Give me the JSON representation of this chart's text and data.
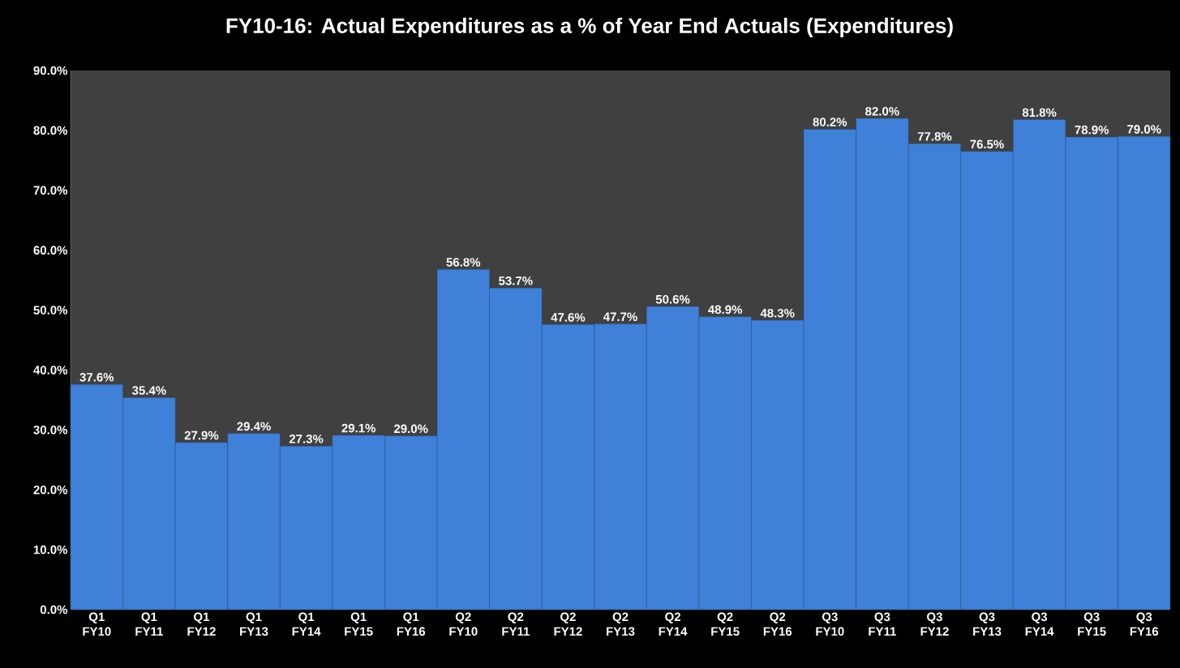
{
  "chart_data": {
    "type": "bar",
    "title": "FY10-16: Actual Expenditures as a % of Year End Actuals (Expenditures)",
    "categories": [
      "Q1 FY10",
      "Q1 FY11",
      "Q1 FY12",
      "Q1 FY13",
      "Q1 FY14",
      "Q1 FY15",
      "Q1 FY16",
      "Q2 FY10",
      "Q2 FY11",
      "Q2 FY12",
      "Q2 FY13",
      "Q2 FY14",
      "Q2 FY15",
      "Q2 FY16",
      "Q3 FY10",
      "Q3 FY11",
      "Q3 FY12",
      "Q3 FY13",
      "Q3 FY14",
      "Q3 FY15",
      "Q3 FY16"
    ],
    "values": [
      37.6,
      35.4,
      27.9,
      29.4,
      27.3,
      29.1,
      29.0,
      56.8,
      53.7,
      47.6,
      47.7,
      50.6,
      48.9,
      48.3,
      80.2,
      82.0,
      77.8,
      76.5,
      81.8,
      78.9,
      79.0
    ],
    "value_labels": [
      "37.6%",
      "35.4%",
      "27.9%",
      "29.4%",
      "27.3%",
      "29.1%",
      "29.0%",
      "56.8%",
      "53.7%",
      "47.6%",
      "47.7%",
      "50.6%",
      "48.9%",
      "48.3%",
      "80.2%",
      "82.0%",
      "77.8%",
      "76.5%",
      "81.8%",
      "78.9%",
      "79.0%"
    ],
    "color": "#3f80d8",
    "ylim": [
      0,
      90
    ],
    "yticks": [
      {
        "value": 0,
        "label": "0.0%"
      },
      {
        "value": 10,
        "label": "10.0%"
      },
      {
        "value": 20,
        "label": "20.0%"
      },
      {
        "value": 30,
        "label": "30.0%"
      },
      {
        "value": 40,
        "label": "40.0%"
      },
      {
        "value": 50,
        "label": "50.0%"
      },
      {
        "value": 60,
        "label": "60.0%"
      },
      {
        "value": 70,
        "label": "70.0%"
      },
      {
        "value": 80,
        "label": "80.0%"
      },
      {
        "value": 90,
        "label": "90.0%"
      }
    ],
    "grid": false
  }
}
